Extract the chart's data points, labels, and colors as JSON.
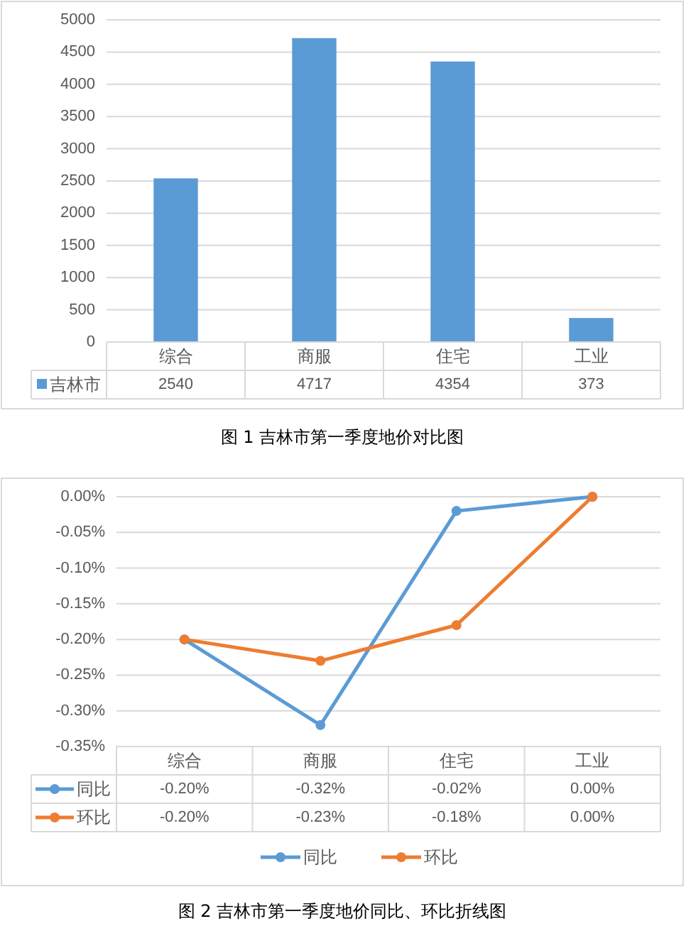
{
  "chart_data": [
    {
      "type": "bar",
      "categories": [
        "综合",
        "商服",
        "住宅",
        "工业"
      ],
      "series": [
        {
          "name": "吉林市",
          "color": "#5b9bd5",
          "values": [
            2540,
            4717,
            4354,
            373
          ]
        }
      ],
      "ylim": [
        0,
        5000
      ],
      "yticks": [
        0,
        500,
        1000,
        1500,
        2000,
        2500,
        3000,
        3500,
        4000,
        4500,
        5000
      ],
      "grid": "y",
      "data_labels": true,
      "annotations": [
        "图 1  吉林市第一季度地价对比图"
      ]
    },
    {
      "type": "line",
      "categories": [
        "综合",
        "商服",
        "住宅",
        "工业"
      ],
      "series": [
        {
          "name": "同比",
          "color": "#5b9bd5",
          "values": [
            -0.2,
            -0.32,
            -0.02,
            0.0
          ],
          "value_labels": [
            "-0.20%",
            "-0.32%",
            "-0.02%",
            "0.00%"
          ]
        },
        {
          "name": "环比",
          "color": "#ed7d31",
          "values": [
            -0.2,
            -0.23,
            -0.18,
            0.0
          ],
          "value_labels": [
            "-0.20%",
            "-0.23%",
            "-0.18%",
            "0.00%"
          ]
        }
      ],
      "ylim": [
        -0.35,
        0
      ],
      "yticks": [
        {
          "value": 0,
          "label": "0.00%"
        },
        {
          "value": -0.05,
          "label": "-0.05%"
        },
        {
          "value": -0.1,
          "label": "-0.10%"
        },
        {
          "value": -0.15,
          "label": "-0.15%"
        },
        {
          "value": -0.2,
          "label": "-0.20%"
        },
        {
          "value": -0.25,
          "label": "-0.25%"
        },
        {
          "value": -0.3,
          "label": "-0.30%"
        },
        {
          "value": -0.35,
          "label": "-0.35%"
        }
      ],
      "grid": "y",
      "marker": "circle",
      "line_style": "solid",
      "legend": "bottom",
      "annotations": [
        "图 2  吉林市第一季度地价同比、环比折线图"
      ]
    }
  ]
}
